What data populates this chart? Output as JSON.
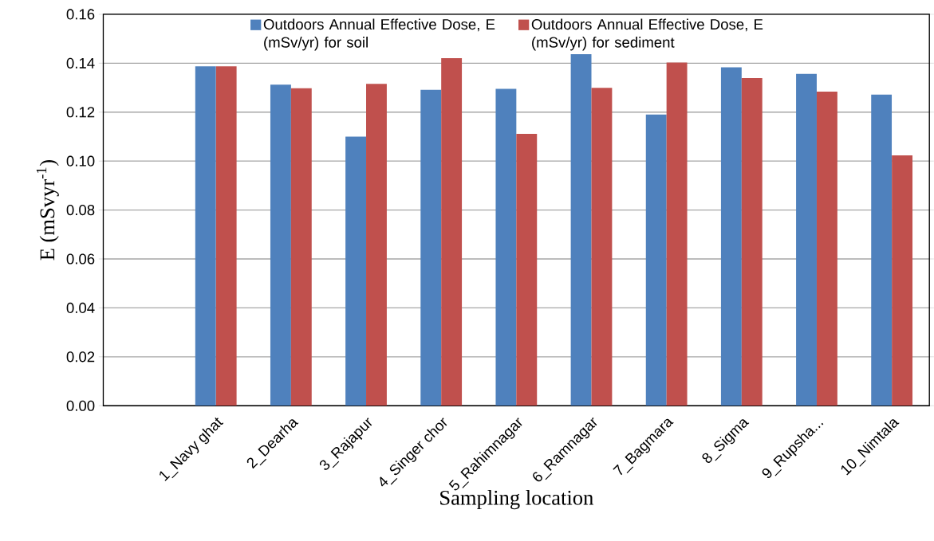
{
  "chart_data": {
    "type": "bar",
    "xlabel": "Sampling location",
    "ylabel": "E (mSvyr$^{-1}$)",
    "categories": [
      null,
      "1_Navy ghat",
      "2_Dearha",
      "3_Rajapur",
      "4_Singer chor",
      "5_Rahimnagar",
      "6_Ramnagar",
      "7_Bagmara",
      "8_Sigma",
      "9_Rupsha...",
      "10_Nimtala"
    ],
    "series": [
      {
        "name": "Outdoors Annual Effective Dose, E (mSv/yr) for soil",
        "color": "#4f81bd",
        "values": [
          null,
          0.1387,
          0.1312,
          0.11,
          0.1291,
          0.1295,
          0.1437,
          0.119,
          0.1383,
          0.1356,
          0.1272
        ]
      },
      {
        "name": "Outdoors Annual Effective Dose, E (mSv/yr) for sediment",
        "color": "#c0504d",
        "values": [
          null,
          0.1387,
          0.1298,
          0.1316,
          0.1421,
          0.1111,
          0.1299,
          0.1403,
          0.1339,
          0.1284,
          0.1023
        ]
      }
    ],
    "ylim": [
      0,
      0.16
    ],
    "yticks": [
      {
        "value": 0,
        "label": "0.00"
      },
      {
        "value": 0.02,
        "label": "0.02"
      },
      {
        "value": 0.04,
        "label": "0.04"
      },
      {
        "value": 0.06,
        "label": "0.06"
      },
      {
        "value": 0.08,
        "label": "0.08"
      },
      {
        "value": 0.1,
        "label": "0.10"
      },
      {
        "value": 0.12,
        "label": "0.12"
      },
      {
        "value": 0.14,
        "label": "0.14"
      },
      {
        "value": 0.16,
        "label": "0.16"
      }
    ],
    "grid": "y",
    "legend": "top"
  }
}
